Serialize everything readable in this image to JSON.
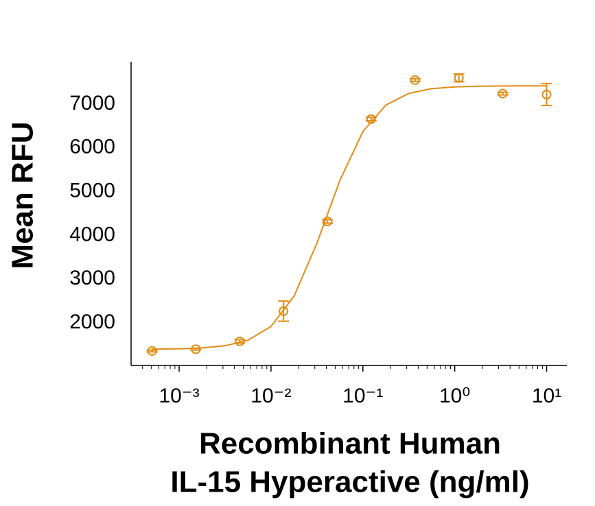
{
  "chart_data": {
    "type": "scatter",
    "xscale": "log",
    "ylabel": "Mean RFU",
    "xlabel": [
      "Recombinant Human",
      "IL-15 Hyperactive (ng/ml)"
    ],
    "color": "#e08c12",
    "xlim": [
      0.0003,
      16.6
    ],
    "ylim": [
      1030,
      7970
    ],
    "xticks": [
      {
        "value": 0.001,
        "label": "10⁻³"
      },
      {
        "value": 0.01,
        "label": "10⁻²"
      },
      {
        "value": 0.1,
        "label": "10⁻¹"
      },
      {
        "value": 1,
        "label": "10⁰"
      },
      {
        "value": 10,
        "label": "10¹"
      }
    ],
    "xminorticks": [
      0.0004,
      0.0005,
      0.0006,
      0.0007,
      0.0008,
      0.0009,
      0.002,
      0.003,
      0.004,
      0.005,
      0.006,
      0.007,
      0.008,
      0.009,
      0.02,
      0.03,
      0.04,
      0.05,
      0.06,
      0.07,
      0.08,
      0.09,
      0.2,
      0.3,
      0.4,
      0.5,
      0.6,
      0.7,
      0.8,
      0.9,
      2,
      3,
      4,
      5,
      6,
      7,
      8,
      9
    ],
    "yticks": [
      2000,
      3000,
      4000,
      5000,
      6000,
      7000
    ],
    "series": [
      {
        "x": [
          0.000508,
          0.00152,
          0.00457,
          0.0137,
          0.0412,
          0.123,
          0.37,
          1.11,
          3.33,
          10
        ],
        "y": [
          1360,
          1400,
          1580,
          2270,
          4320,
          6660,
          7550,
          7600,
          7240,
          7220
        ],
        "err": [
          20,
          20,
          40,
          230,
          40,
          40,
          30,
          90,
          30,
          250
        ]
      }
    ],
    "fit": {
      "x": [
        0.0005,
        0.001,
        0.00178,
        0.00316,
        0.00562,
        0.01,
        0.0178,
        0.0316,
        0.0562,
        0.1,
        0.178,
        0.316,
        0.562,
        1,
        1.78,
        3.16,
        5.62,
        10
      ],
      "y": [
        1403,
        1411,
        1430,
        1480,
        1607,
        1921,
        2611,
        3820,
        5259,
        6373,
        6980,
        7246,
        7354,
        7395,
        7410,
        7416,
        7419,
        7419
      ]
    }
  }
}
